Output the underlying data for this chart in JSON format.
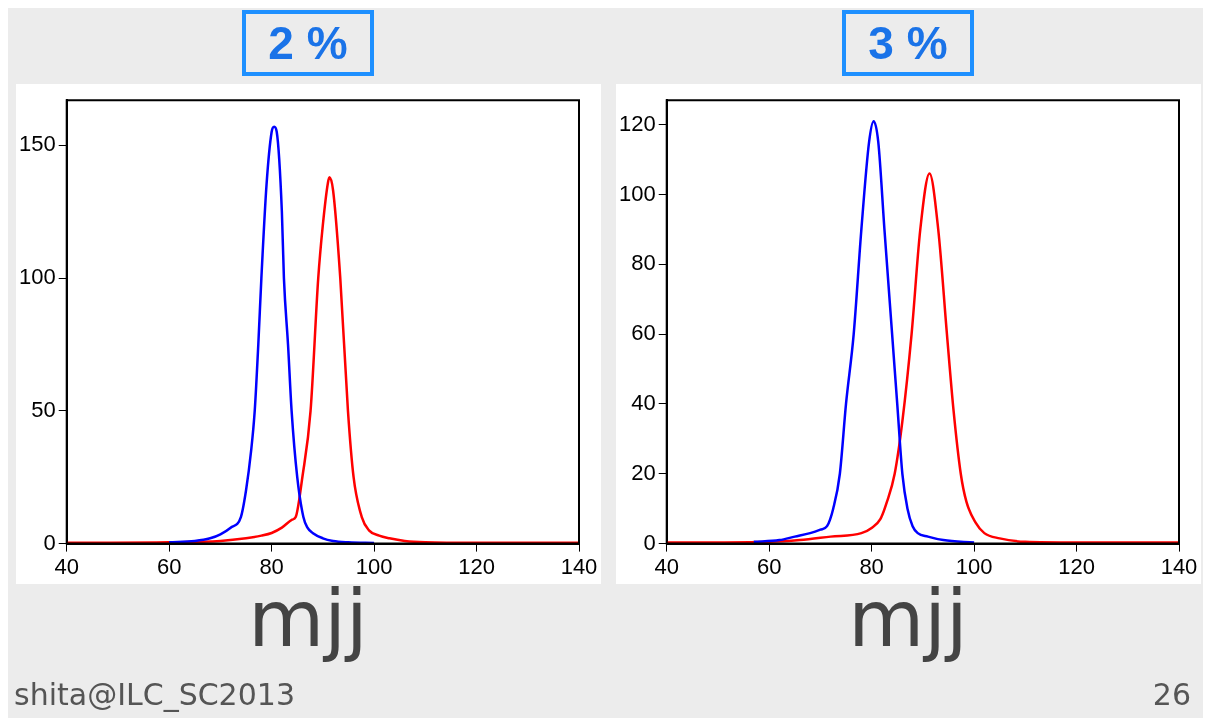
{
  "chart_data": [
    {
      "type": "line",
      "title": "2 %",
      "xlabel": "mjj",
      "xlim": [
        40,
        140
      ],
      "xticks": [
        40,
        60,
        80,
        100,
        120,
        140
      ],
      "ylim": [
        0,
        167
      ],
      "yticks": [
        0,
        50,
        100,
        150
      ],
      "grid": false,
      "legend": false,
      "marker": "none",
      "annotations": [
        "shita@ILC_SC2013"
      ],
      "series": [
        {
          "color": "#0000ff",
          "x": [
            60,
            65,
            68,
            70,
            72,
            74,
            75,
            76,
            76.7,
            77.4,
            78,
            79,
            80,
            80.5,
            81,
            82,
            82.4,
            83.2,
            83.9,
            85,
            86.2,
            87,
            88,
            90,
            92,
            95,
            100
          ],
          "values": [
            0.5,
            1,
            2,
            3.5,
            6,
            10,
            20,
            35,
            50,
            75,
            100,
            135,
            155,
            157,
            155,
            125,
            100,
            75,
            50,
            25,
            10,
            6,
            4,
            2,
            1,
            0.5,
            0.2
          ]
        },
        {
          "color": "#ff0000",
          "x": [
            40,
            60,
            70,
            75,
            78,
            80,
            82,
            84,
            84.7,
            86,
            87.6,
            89.1,
            90,
            91,
            91.3,
            92,
            93.4,
            94.9,
            96,
            97.6,
            99,
            101,
            103,
            106,
            110,
            120,
            140
          ],
          "values": [
            0.3,
            0.5,
            1,
            2,
            3,
            4,
            6,
            9,
            10,
            25,
            50,
            100,
            120,
            136,
            138,
            133,
            100,
            50,
            25,
            10,
            5,
            3,
            2,
            1,
            0.5,
            0.3,
            0.3
          ]
        }
      ]
    },
    {
      "type": "line",
      "title": "3 %",
      "xlabel": "mjj",
      "xlim": [
        40,
        140
      ],
      "xticks": [
        40,
        60,
        80,
        100,
        120,
        140
      ],
      "ylim": [
        0,
        127
      ],
      "yticks": [
        0,
        20,
        40,
        60,
        80,
        100,
        120
      ],
      "grid": false,
      "legend": false,
      "marker": "none",
      "annotations": [
        "26"
      ],
      "series": [
        {
          "color": "#0000ff",
          "x": [
            57,
            62,
            65,
            68,
            70,
            71.3,
            72.5,
            73.8,
            75,
            76.5,
            78,
            79.5,
            80.4,
            81.3,
            82.5,
            84,
            85,
            86,
            87,
            88,
            89,
            91,
            94,
            100
          ],
          "values": [
            0.5,
            1,
            2,
            3,
            4,
            5,
            10,
            20,
            40,
            60,
            90,
            115,
            121,
            115,
            90,
            60,
            40,
            20,
            10,
            5,
            3,
            2,
            1,
            0.3
          ]
        },
        {
          "color": "#ff0000",
          "x": [
            40,
            60,
            66,
            72,
            78,
            80,
            81.7,
            83,
            84.5,
            86,
            87.8,
            89.5,
            91.3,
            93,
            94.7,
            96,
            97.4,
            98.5,
            100.3,
            102,
            105,
            110,
            120,
            140
          ],
          "values": [
            0.3,
            0.5,
            1,
            2,
            3,
            4.5,
            7,
            12,
            20,
            35,
            60,
            90,
            106,
            90,
            60,
            38,
            20,
            12,
            6,
            3,
            1.5,
            0.5,
            0.3,
            0.3
          ]
        }
      ]
    }
  ]
}
